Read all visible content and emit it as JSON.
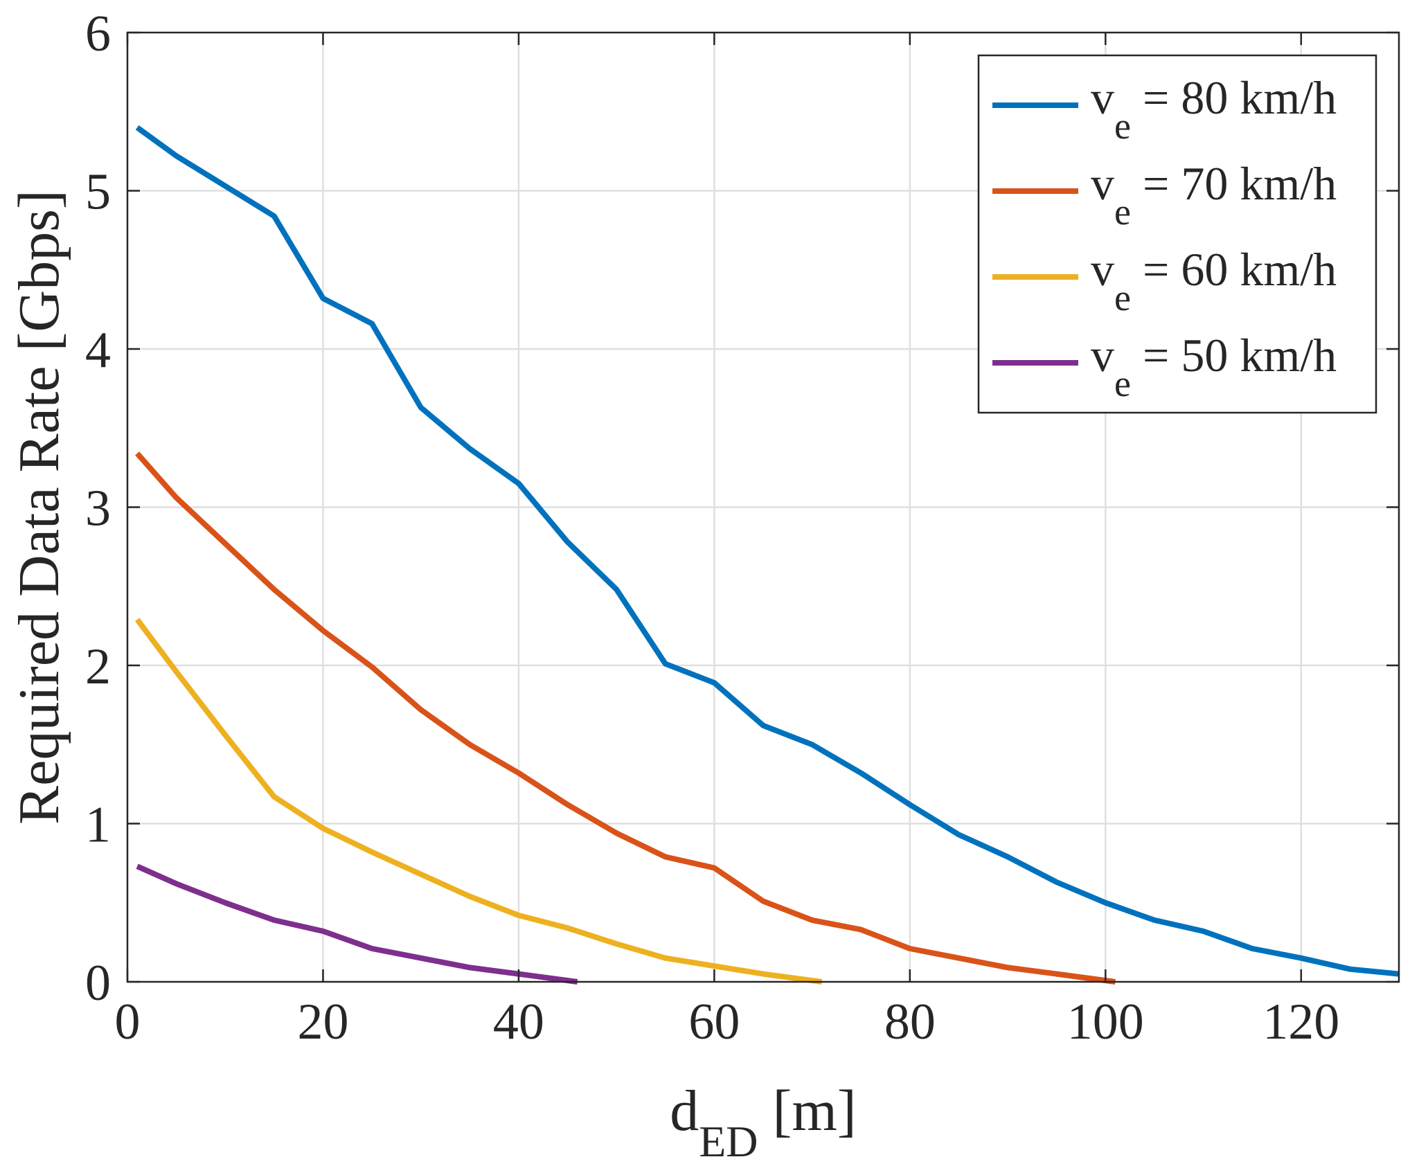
{
  "chart_data": {
    "type": "line",
    "title": "",
    "xlabel": {
      "main": "d",
      "sub": "ED",
      "unit": " [m]"
    },
    "ylabel": "Required Data Rate [Gbps]",
    "xlim": [
      0,
      130
    ],
    "ylim": [
      0,
      6
    ],
    "xticks": [
      0,
      20,
      40,
      60,
      80,
      100,
      120
    ],
    "yticks": [
      0,
      1,
      2,
      3,
      4,
      5,
      6
    ],
    "grid": true,
    "legend_position": "top-right",
    "series": [
      {
        "name": "v_e = 80 km/h",
        "label_main": "v",
        "label_sub": "e",
        "label_rest": " = 80 km/h",
        "color": "#0072BD",
        "x": [
          1,
          5,
          10,
          15,
          20,
          25,
          30,
          35,
          40,
          45,
          50,
          55,
          60,
          65,
          70,
          75,
          80,
          85,
          90,
          95,
          100,
          105,
          110,
          115,
          120,
          125,
          130
        ],
        "y": [
          5.4,
          5.22,
          5.03,
          4.84,
          4.32,
          4.16,
          3.63,
          3.37,
          3.15,
          2.78,
          2.48,
          2.01,
          1.89,
          1.62,
          1.5,
          1.32,
          1.12,
          0.93,
          0.79,
          0.63,
          0.5,
          0.39,
          0.32,
          0.21,
          0.15,
          0.08,
          0.05
        ]
      },
      {
        "name": "v_e = 70 km/h",
        "label_main": "v",
        "label_sub": "e",
        "label_rest": " = 70 km/h",
        "color": "#D95319",
        "x": [
          1,
          5,
          10,
          15,
          20,
          25,
          30,
          35,
          40,
          45,
          50,
          55,
          60,
          65,
          70,
          75,
          80,
          85,
          90,
          95,
          101
        ],
        "y": [
          3.34,
          3.06,
          2.77,
          2.48,
          2.22,
          1.99,
          1.72,
          1.5,
          1.32,
          1.12,
          0.94,
          0.79,
          0.72,
          0.51,
          0.39,
          0.33,
          0.21,
          0.15,
          0.09,
          0.05,
          0.0
        ]
      },
      {
        "name": "v_e = 60 km/h",
        "label_main": "v",
        "label_sub": "e",
        "label_rest": " = 60 km/h",
        "color": "#EDB120",
        "x": [
          1,
          5,
          10,
          15,
          20,
          25,
          30,
          35,
          40,
          45,
          50,
          55,
          60,
          65,
          71
        ],
        "y": [
          2.29,
          1.96,
          1.56,
          1.17,
          0.97,
          0.82,
          0.68,
          0.54,
          0.42,
          0.34,
          0.24,
          0.15,
          0.1,
          0.05,
          0.0
        ]
      },
      {
        "name": "v_e = 50 km/h",
        "label_main": "v",
        "label_sub": "e",
        "label_rest": " = 50 km/h",
        "color": "#7E2F8E",
        "x": [
          1,
          5,
          10,
          15,
          20,
          25,
          30,
          35,
          40,
          46
        ],
        "y": [
          0.73,
          0.62,
          0.5,
          0.39,
          0.32,
          0.21,
          0.15,
          0.09,
          0.05,
          0.0
        ]
      }
    ]
  }
}
